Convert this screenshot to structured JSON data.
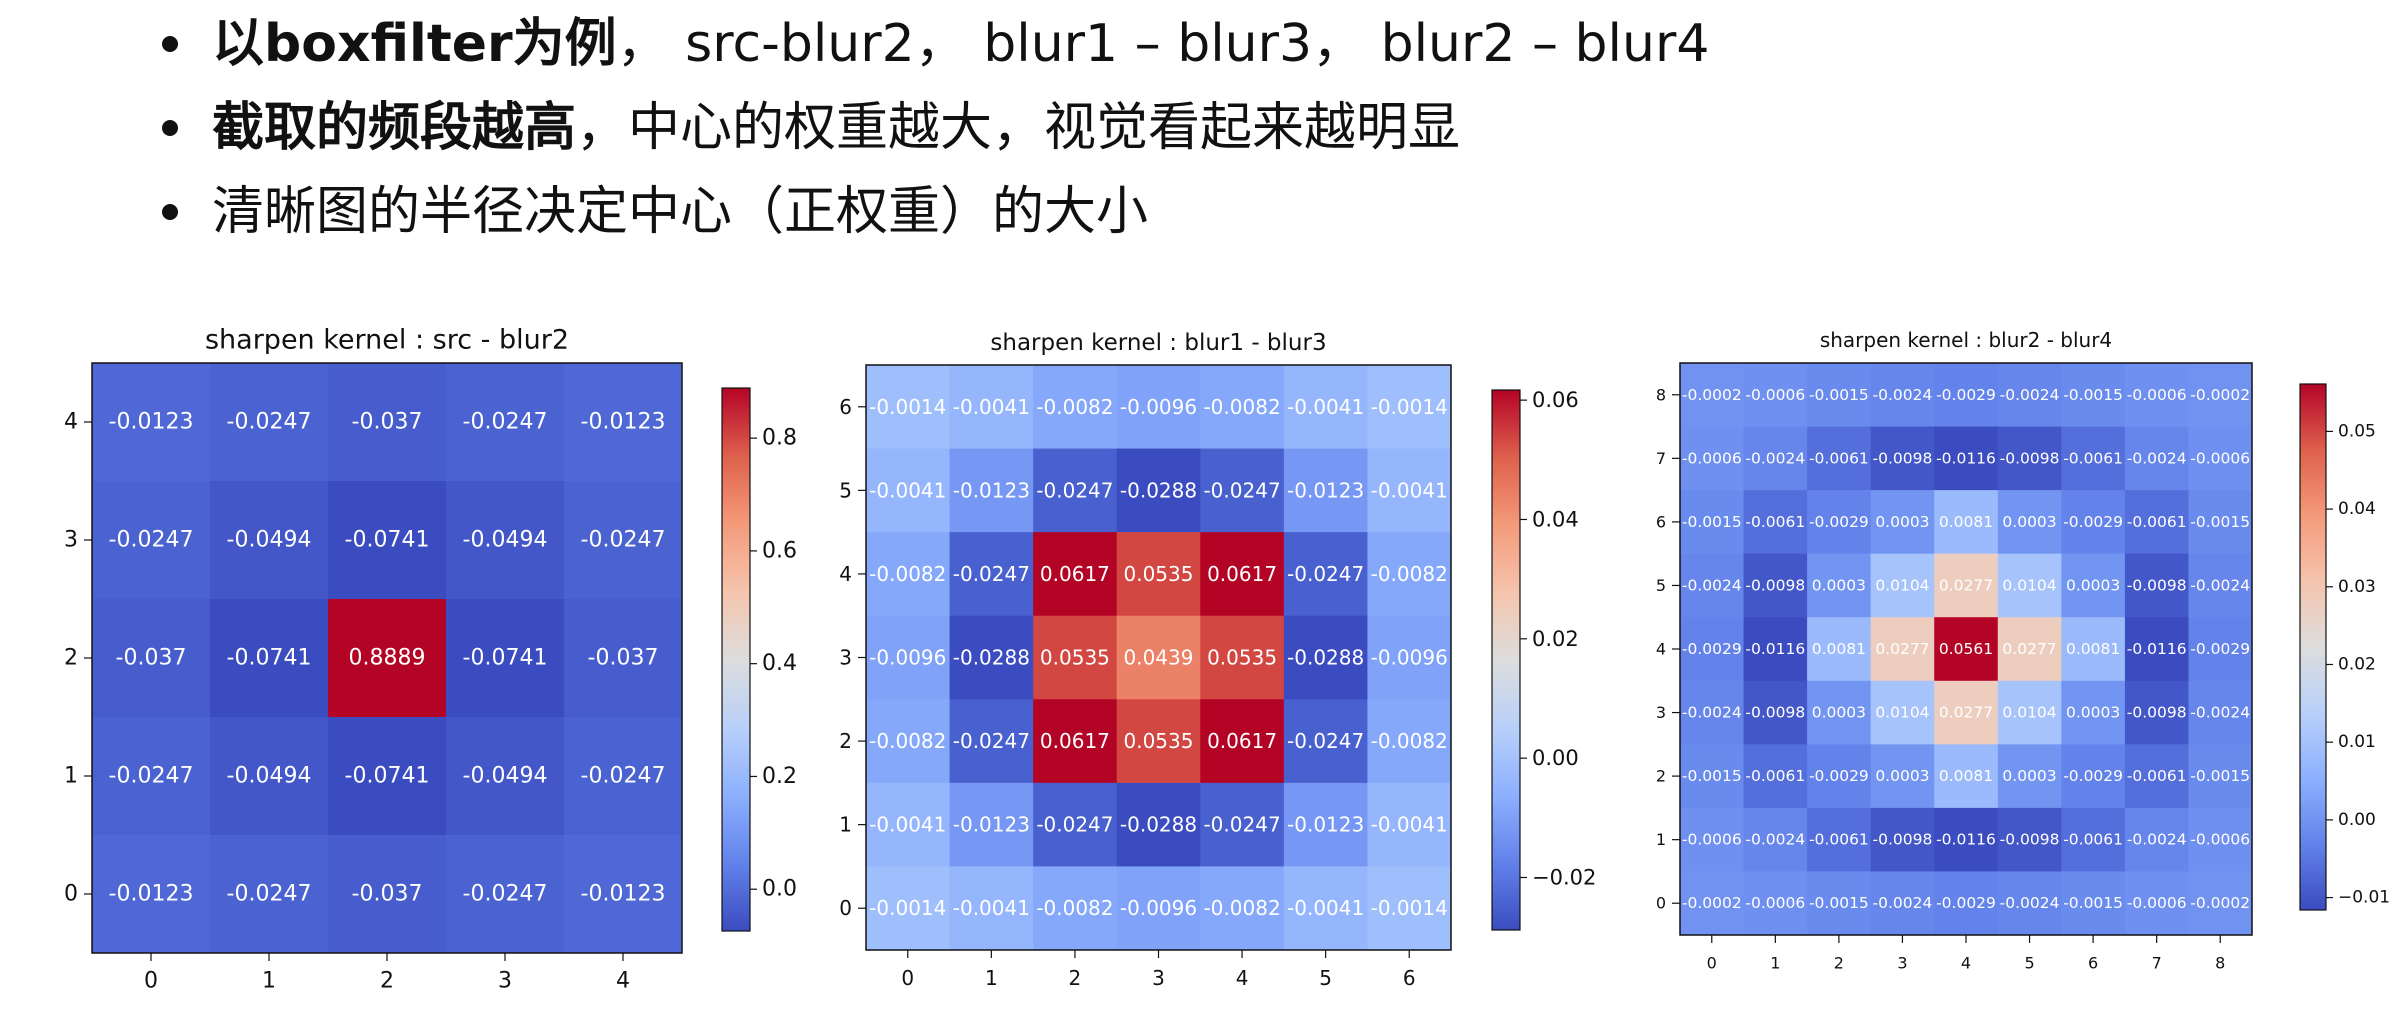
{
  "bullets": [
    {
      "bold": "以boxfilter为例",
      "rest": "，  src-blur2， blur1 – blur3， blur2 – blur4"
    },
    {
      "bold": "截取的频段越高",
      "rest": "，中心的权重越大，视觉看起来越明显"
    },
    {
      "bold": "",
      "rest": "清晰图的半径决定中心（正权重）的大小"
    }
  ],
  "chart_data": [
    {
      "type": "heatmap",
      "title": "sharpen kernel : src - blur2",
      "colormap": "coolwarm",
      "x_ticks": [
        0,
        1,
        2,
        3,
        4
      ],
      "y_ticks": [
        0,
        1,
        2,
        3,
        4
      ],
      "clim": [
        -0.0741,
        0.8889
      ],
      "colorbar_ticks": [
        "0.0",
        "0.2",
        "0.4",
        "0.6",
        "0.8"
      ],
      "colorbar_tick_values": [
        0.0,
        0.2,
        0.4,
        0.6,
        0.8
      ],
      "values_top_to_bottom": [
        [
          "-0.0123",
          "-0.0247",
          "-0.037",
          "-0.0247",
          "-0.0123"
        ],
        [
          "-0.0247",
          "-0.0494",
          "-0.0741",
          "-0.0494",
          "-0.0247"
        ],
        [
          "-0.037",
          "-0.0741",
          "0.8889",
          "-0.0741",
          "-0.037"
        ],
        [
          "-0.0247",
          "-0.0494",
          "-0.0741",
          "-0.0494",
          "-0.0247"
        ],
        [
          "-0.0123",
          "-0.0247",
          "-0.037",
          "-0.0247",
          "-0.0123"
        ]
      ]
    },
    {
      "type": "heatmap",
      "title": "sharpen kernel : blur1 - blur3",
      "colormap": "coolwarm",
      "x_ticks": [
        0,
        1,
        2,
        3,
        4,
        5,
        6
      ],
      "y_ticks": [
        0,
        1,
        2,
        3,
        4,
        5,
        6
      ],
      "clim": [
        -0.0288,
        0.0617
      ],
      "colorbar_ticks": [
        "−0.02",
        "0.00",
        "0.02",
        "0.04",
        "0.06"
      ],
      "colorbar_tick_values": [
        -0.02,
        0.0,
        0.02,
        0.04,
        0.06
      ],
      "values_top_to_bottom": [
        [
          "-0.0014",
          "-0.0041",
          "-0.0082",
          "-0.0096",
          "-0.0082",
          "-0.0041",
          "-0.0014"
        ],
        [
          "-0.0041",
          "-0.0123",
          "-0.0247",
          "-0.0288",
          "-0.0247",
          "-0.0123",
          "-0.0041"
        ],
        [
          "-0.0082",
          "-0.0247",
          "0.0617",
          "0.0535",
          "0.0617",
          "-0.0247",
          "-0.0082"
        ],
        [
          "-0.0096",
          "-0.0288",
          "0.0535",
          "0.0439",
          "0.0535",
          "-0.0288",
          "-0.0096"
        ],
        [
          "-0.0082",
          "-0.0247",
          "0.0617",
          "0.0535",
          "0.0617",
          "-0.0247",
          "-0.0082"
        ],
        [
          "-0.0041",
          "-0.0123",
          "-0.0247",
          "-0.0288",
          "-0.0247",
          "-0.0123",
          "-0.0041"
        ],
        [
          "-0.0014",
          "-0.0041",
          "-0.0082",
          "-0.0096",
          "-0.0082",
          "-0.0041",
          "-0.0014"
        ]
      ]
    },
    {
      "type": "heatmap",
      "title": "sharpen kernel : blur2 - blur4",
      "colormap": "coolwarm",
      "x_ticks": [
        0,
        1,
        2,
        3,
        4,
        5,
        6,
        7,
        8
      ],
      "y_ticks": [
        0,
        1,
        2,
        3,
        4,
        5,
        6,
        7,
        8
      ],
      "clim": [
        -0.0116,
        0.0561
      ],
      "colorbar_ticks": [
        "−0.01",
        "0.00",
        "0.01",
        "0.02",
        "0.03",
        "0.04",
        "0.05"
      ],
      "colorbar_tick_values": [
        -0.01,
        0.0,
        0.01,
        0.02,
        0.03,
        0.04,
        0.05
      ],
      "values_top_to_bottom": [
        [
          "-0.0002",
          "-0.0006",
          "-0.0015",
          "-0.0024",
          "-0.0029",
          "-0.0024",
          "-0.0015",
          "-0.0006",
          "-0.0002"
        ],
        [
          "-0.0006",
          "-0.0024",
          "-0.0061",
          "-0.0098",
          "-0.0116",
          "-0.0098",
          "-0.0061",
          "-0.0024",
          "-0.0006"
        ],
        [
          "-0.0015",
          "-0.0061",
          "-0.0029",
          "0.0003",
          "0.0081",
          "0.0003",
          "-0.0029",
          "-0.0061",
          "-0.0015"
        ],
        [
          "-0.0024",
          "-0.0098",
          "0.0003",
          "0.0104",
          "0.0277",
          "0.0104",
          "0.0003",
          "-0.0098",
          "-0.0024"
        ],
        [
          "-0.0029",
          "-0.0116",
          "0.0081",
          "0.0277",
          "0.0561",
          "0.0277",
          "0.0081",
          "-0.0116",
          "-0.0029"
        ],
        [
          "-0.0024",
          "-0.0098",
          "0.0003",
          "0.0104",
          "0.0277",
          "0.0104",
          "0.0003",
          "-0.0098",
          "-0.0024"
        ],
        [
          "-0.0015",
          "-0.0061",
          "-0.0029",
          "0.0003",
          "0.0081",
          "0.0003",
          "-0.0029",
          "-0.0061",
          "-0.0015"
        ],
        [
          "-0.0006",
          "-0.0024",
          "-0.0061",
          "-0.0098",
          "-0.0116",
          "-0.0098",
          "-0.0061",
          "-0.0024",
          "-0.0006"
        ],
        [
          "-0.0002",
          "-0.0006",
          "-0.0015",
          "-0.0024",
          "-0.0029",
          "-0.0024",
          "-0.0015",
          "-0.0006",
          "-0.0002"
        ]
      ]
    }
  ]
}
